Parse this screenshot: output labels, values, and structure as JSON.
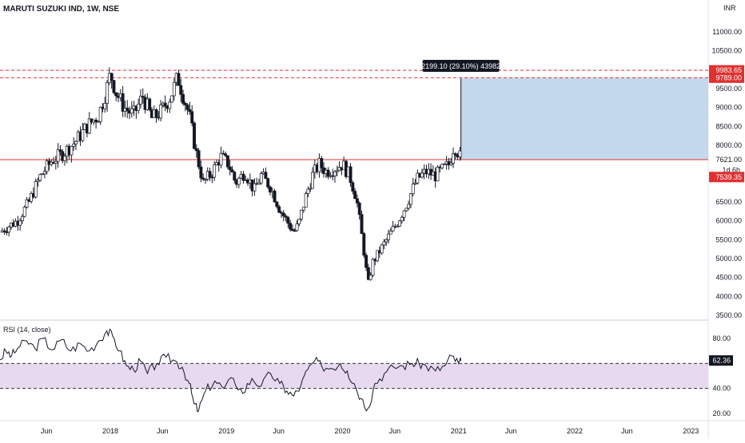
{
  "header": {
    "title": "MARUTI SUZUKI IND, 1W, NSE",
    "currency": "INR"
  },
  "colors": {
    "up": "#26a69a",
    "down": "#131722",
    "price_line": "#e03030",
    "box": "#b9d1ea",
    "rsi_band": "#e6d9f0",
    "rsi_line": "#131722"
  },
  "chart_data": [
    {
      "type": "candlestick",
      "title": "MARUTI SUZUKI IND, 1W, NSE",
      "ylabel": "INR",
      "ylim": [
        3400,
        11700
      ],
      "y_ticks": [
        {
          "value": 11000,
          "label": "11000.00"
        },
        {
          "value": 10500,
          "label": "10500.00"
        },
        {
          "value": 9500,
          "label": "9500.00"
        },
        {
          "value": 9000,
          "label": "9000.00"
        },
        {
          "value": 8500,
          "label": "8500.00"
        },
        {
          "value": 8000,
          "label": "8000.00"
        },
        {
          "value": 6500,
          "label": "6500.00"
        },
        {
          "value": 6000,
          "label": "6000.00"
        },
        {
          "value": 5500,
          "label": "5500.00"
        },
        {
          "value": 5000,
          "label": "5000.00"
        },
        {
          "value": 4500,
          "label": "4500.00"
        },
        {
          "value": 4000,
          "label": "4000.00"
        },
        {
          "value": 3500,
          "label": "3500.00"
        }
      ],
      "x_ticks": [
        {
          "value": 2017.45,
          "label": "Jun"
        },
        {
          "value": 2018.0,
          "label": "2018"
        },
        {
          "value": 2018.45,
          "label": "Jun"
        },
        {
          "value": 2019.0,
          "label": "2019"
        },
        {
          "value": 2019.45,
          "label": "Jun"
        },
        {
          "value": 2020.0,
          "label": "2020"
        },
        {
          "value": 2020.45,
          "label": "Jun"
        },
        {
          "value": 2021.0,
          "label": "2021"
        },
        {
          "value": 2021.45,
          "label": "Jun"
        },
        {
          "value": 2022.0,
          "label": "2022"
        },
        {
          "value": 2022.45,
          "label": "Jun"
        },
        {
          "value": 2023.0,
          "label": "2023"
        }
      ],
      "x_range": [
        2017.05,
        2023.15
      ],
      "close_path": [
        [
          2017.05,
          5700
        ],
        [
          2017.12,
          5850
        ],
        [
          2017.2,
          6000
        ],
        [
          2017.3,
          6500
        ],
        [
          2017.4,
          7200
        ],
        [
          2017.5,
          7600
        ],
        [
          2017.6,
          7800
        ],
        [
          2017.7,
          8100
        ],
        [
          2017.8,
          8500
        ],
        [
          2017.9,
          8800
        ],
        [
          2017.97,
          9500
        ],
        [
          2018.0,
          9900
        ],
        [
          2018.05,
          9400
        ],
        [
          2018.12,
          9000
        ],
        [
          2018.2,
          8800
        ],
        [
          2018.28,
          9300
        ],
        [
          2018.36,
          8700
        ],
        [
          2018.44,
          8900
        ],
        [
          2018.52,
          9300
        ],
        [
          2018.58,
          9800
        ],
        [
          2018.63,
          9300
        ],
        [
          2018.68,
          8800
        ],
        [
          2018.74,
          7800
        ],
        [
          2018.8,
          7000
        ],
        [
          2018.88,
          7300
        ],
        [
          2018.95,
          7700
        ],
        [
          2019.02,
          7500
        ],
        [
          2019.08,
          7000
        ],
        [
          2019.16,
          7300
        ],
        [
          2019.24,
          6800
        ],
        [
          2019.3,
          7200
        ],
        [
          2019.38,
          6900
        ],
        [
          2019.46,
          6300
        ],
        [
          2019.52,
          6000
        ],
        [
          2019.58,
          5700
        ],
        [
          2019.62,
          5900
        ],
        [
          2019.68,
          6600
        ],
        [
          2019.74,
          7200
        ],
        [
          2019.8,
          7500
        ],
        [
          2019.86,
          7300
        ],
        [
          2019.94,
          7400
        ],
        [
          2020.0,
          7500
        ],
        [
          2020.06,
          7200
        ],
        [
          2020.12,
          6600
        ],
        [
          2020.18,
          5300
        ],
        [
          2020.22,
          4300
        ],
        [
          2020.26,
          4900
        ],
        [
          2020.32,
          5200
        ],
        [
          2020.4,
          5600
        ],
        [
          2020.48,
          6000
        ],
        [
          2020.56,
          6500
        ],
        [
          2020.64,
          7100
        ],
        [
          2020.72,
          7300
        ],
        [
          2020.8,
          7200
        ],
        [
          2020.88,
          7400
        ],
        [
          2020.92,
          7500
        ],
        [
          2020.96,
          8000
        ],
        [
          2021.0,
          7800
        ],
        [
          2021.02,
          7621
        ]
      ],
      "annotations": {
        "measure_label": "2199.10 (29.10%) 43982",
        "level_high": 9983.65,
        "level_high_label": "9983.65",
        "level_box_top": 9789.0,
        "level_box_top_label": "9789.00",
        "last_price": 7621.0,
        "last_price_label": "7621.00",
        "countdown": "1d 6h",
        "support": 7539.35,
        "support_label": "7539.35",
        "box_from": 2021.02,
        "box_to": 2023.15
      }
    },
    {
      "type": "line",
      "title": "RSI (14, close)",
      "ylim": [
        12,
        92
      ],
      "y_ticks": [
        {
          "value": 80,
          "label": "80.00"
        },
        {
          "value": 40,
          "label": "40.00"
        },
        {
          "value": 20,
          "label": "20.00"
        }
      ],
      "band": [
        40,
        60
      ],
      "current": 62.36,
      "current_label": "62.36",
      "series": [
        {
          "values": [
            [
              2017.05,
              63
            ],
            [
              2017.1,
              70
            ],
            [
              2017.15,
              66
            ],
            [
              2017.2,
              72
            ],
            [
              2017.28,
              78
            ],
            [
              2017.35,
              72
            ],
            [
              2017.42,
              80
            ],
            [
              2017.5,
              71
            ],
            [
              2017.58,
              79
            ],
            [
              2017.66,
              70
            ],
            [
              2017.74,
              76
            ],
            [
              2017.82,
              70
            ],
            [
              2017.9,
              78
            ],
            [
              2017.97,
              86
            ],
            [
              2018.02,
              82
            ],
            [
              2018.08,
              70
            ],
            [
              2018.14,
              58
            ],
            [
              2018.2,
              55
            ],
            [
              2018.26,
              62
            ],
            [
              2018.32,
              52
            ],
            [
              2018.4,
              60
            ],
            [
              2018.48,
              65
            ],
            [
              2018.56,
              62
            ],
            [
              2018.62,
              57
            ],
            [
              2018.68,
              44
            ],
            [
              2018.72,
              28
            ],
            [
              2018.76,
              22
            ],
            [
              2018.82,
              38
            ],
            [
              2018.9,
              46
            ],
            [
              2018.98,
              40
            ],
            [
              2019.06,
              48
            ],
            [
              2019.14,
              36
            ],
            [
              2019.22,
              48
            ],
            [
              2019.3,
              42
            ],
            [
              2019.38,
              52
            ],
            [
              2019.46,
              44
            ],
            [
              2019.52,
              38
            ],
            [
              2019.58,
              34
            ],
            [
              2019.64,
              42
            ],
            [
              2019.7,
              55
            ],
            [
              2019.76,
              62
            ],
            [
              2019.82,
              58
            ],
            [
              2019.9,
              56
            ],
            [
              2019.98,
              60
            ],
            [
              2020.04,
              54
            ],
            [
              2020.1,
              44
            ],
            [
              2020.16,
              32
            ],
            [
              2020.22,
              24
            ],
            [
              2020.28,
              44
            ],
            [
              2020.36,
              52
            ],
            [
              2020.44,
              57
            ],
            [
              2020.52,
              58
            ],
            [
              2020.6,
              60
            ],
            [
              2020.66,
              60
            ],
            [
              2020.72,
              58
            ],
            [
              2020.8,
              54
            ],
            [
              2020.88,
              58
            ],
            [
              2020.94,
              66
            ],
            [
              2021.0,
              60
            ],
            [
              2021.02,
              62
            ]
          ]
        }
      ]
    }
  ]
}
